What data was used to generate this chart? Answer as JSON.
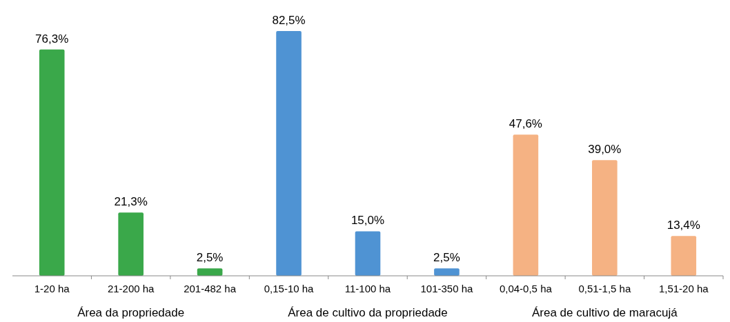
{
  "chart_data": {
    "type": "bar",
    "categories": [
      "1-20 ha",
      "21-200 ha",
      "201-482 ha",
      "0,15-10 ha",
      "11-100 ha",
      "101-350 ha",
      "0,04-0,5 ha",
      "0,51-1,5 ha",
      "1,51-20 ha"
    ],
    "values": [
      76.3,
      21.3,
      2.5,
      82.5,
      15.0,
      2.5,
      47.6,
      39.0,
      13.4
    ],
    "colors": [
      "#3aa84a",
      "#3aa84a",
      "#3aa84a",
      "#4f93d3",
      "#4f93d3",
      "#4f93d3",
      "#f5b283",
      "#f5b283",
      "#f5b283"
    ],
    "value_labels": [
      "76,3%",
      "21,3%",
      "2,5%",
      "82,5%",
      "15,0%",
      "2,5%",
      "47,6%",
      "39,0%",
      "13,4%"
    ],
    "annotations": [
      "Área da propriedade",
      "Área de cultivo da propriedade",
      "Área de cultivo de maracujá"
    ]
  }
}
